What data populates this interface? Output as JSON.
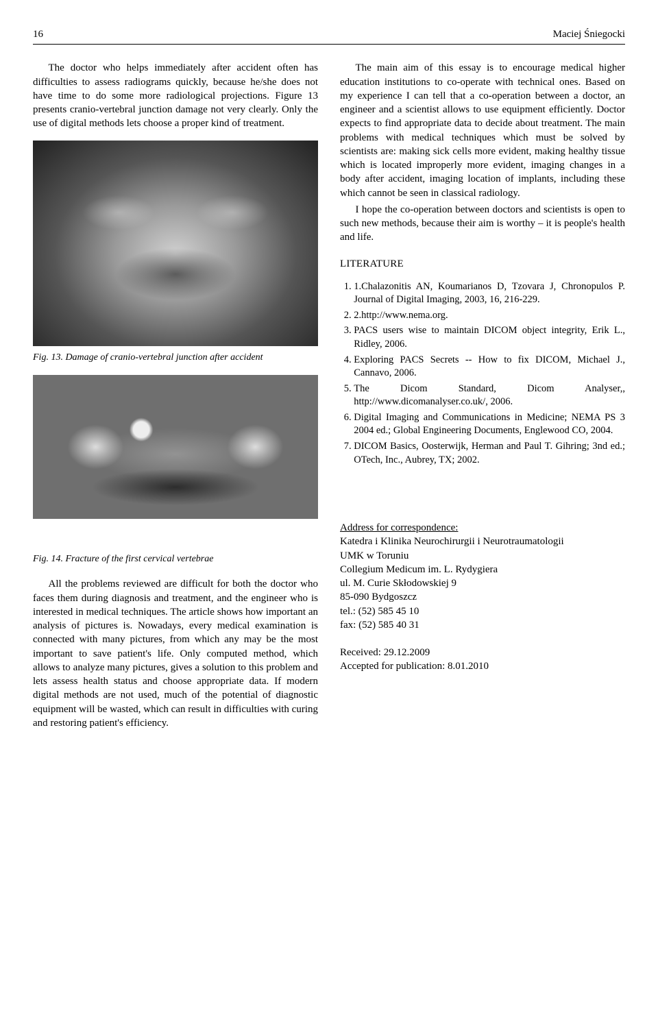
{
  "header": {
    "page_number": "16",
    "author": "Maciej Śniegocki"
  },
  "left": {
    "p1": "The doctor who helps immediately after accident often has difficulties to assess radiograms quickly, because he/she does not have time to do some more radiological projections. Figure 13 presents cranio-vertebral junction damage not very clearly. Only the use of digital methods lets choose a proper kind of treatment.",
    "fig13_caption": "Fig. 13. Damage of cranio-vertebral junction after accident",
    "fig14_caption": "Fig. 14. Fracture of the first cervical vertebrae",
    "p2": "All the problems reviewed are difficult for both the doctor who faces them during diagnosis and treatment, and the engineer who is interested in medical techniques. The article shows how important an analysis of pictures is. Nowadays, every medical examination is connected with many pictures, from which any may be the most important to save patient's life. Only computed method, which allows to analyze many pictures, gives a solution to this problem and lets assess health status and choose appropriate data. If modern digital methods are not used, much of the potential of diagnostic equipment will be wasted, which can result in difficulties with curing and restoring patient's efficiency."
  },
  "right": {
    "p1": "The main aim of this essay is to encourage medical higher education institutions to co-operate with technical ones. Based on my experience I can tell that a co-operation between a doctor,  an engineer and a scientist allows to use equipment efficiently. Doctor expects to find appropriate data to decide about treatment. The main problems with medical techniques which must be solved by scientists are: making sick cells more evident, making healthy tissue which is located improperly more evident, imaging changes in a body after accident, imaging location of implants, including these which cannot be seen in classical radiology.",
    "p2": "I hope the co-operation between doctors and scientists is open to such new methods, because their aim is worthy – it is people's health and life.",
    "literature_heading": "LITERATURE",
    "refs": [
      "1.Chalazonitis AN, Koumarianos D, Tzovara J, Chronopulos P. Journal of Digital Imaging, 2003, 16, 216-229.",
      "2.http://www.nema.org.",
      "PACS users wise to maintain DICOM object integrity, Erik L., Ridley, 2006.",
      "Exploring PACS Secrets -- How to fix DICOM, Michael J., Cannavo, 2006.",
      "The Dicom Standard, Dicom Analyser,, http://www.dicomanalyser.co.uk/, 2006.",
      "Digital Imaging and Communications in Medicine; NEMA PS 3 2004 ed.; Global Engineering Documents, Englewood CO, 2004.",
      "DICOM Basics, Oosterwijk, Herman and Paul T. Gihring; 3nd ed.; OTech, Inc., Aubrey, TX; 2002."
    ],
    "address_heading": "Address for correspondence:",
    "address": [
      "Katedra i Klinika Neurochirurgii i Neurotraumatologii",
      "UMK w Toruniu",
      "Collegium Medicum im. L. Rydygiera",
      "ul. M. Curie Skłodowskiej 9",
      "85-090 Bydgoszcz",
      "tel.: (52) 585 45 10",
      "fax: (52) 585 40 31"
    ],
    "received": "Received: 29.12.2009",
    "accepted": "Accepted for publication: 8.01.2010"
  }
}
